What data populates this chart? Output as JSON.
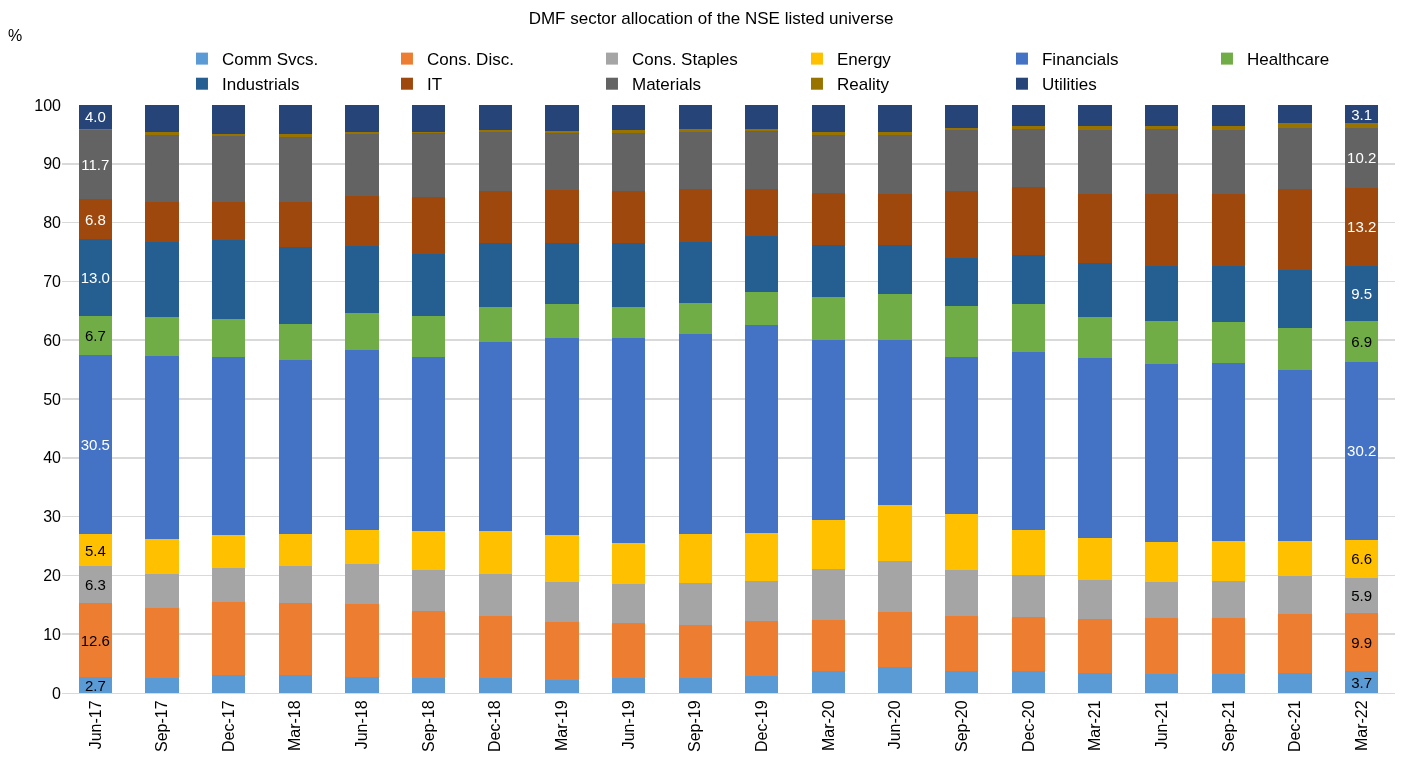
{
  "chart_data": {
    "type": "bar",
    "stacked": true,
    "title": "DMF sector allocation of the NSE listed universe",
    "ylabel": "%",
    "categories": [
      "Jun-17",
      "Sep-17",
      "Dec-17",
      "Mar-18",
      "Jun-18",
      "Sep-18",
      "Dec-18",
      "Mar-19",
      "Jun-19",
      "Sep-19",
      "Dec-19",
      "Mar-20",
      "Jun-20",
      "Sep-20",
      "Dec-20",
      "Mar-21",
      "Jun-21",
      "Sep-21",
      "Dec-21",
      "Mar-22"
    ],
    "ylim": [
      0,
      100
    ],
    "yticks": [
      0,
      10,
      20,
      30,
      40,
      50,
      60,
      70,
      80,
      90,
      100
    ],
    "grid": "y",
    "legend": "top",
    "series": [
      {
        "name": "Comm Svcs.",
        "color": "#5b9bd5",
        "values": [
          2.7,
          2.5,
          3.0,
          3.0,
          2.8,
          2.5,
          2.5,
          2.2,
          2.5,
          2.5,
          2.9,
          3.7,
          4.5,
          3.7,
          3.7,
          3.4,
          3.3,
          3.3,
          3.4,
          3.7
        ],
        "value_labels": [
          "2.7",
          null,
          null,
          null,
          null,
          null,
          null,
          null,
          null,
          null,
          null,
          null,
          null,
          null,
          null,
          null,
          null,
          null,
          null,
          "3.7"
        ]
      },
      {
        "name": "Cons. Disc.",
        "color": "#ed7d31",
        "values": [
          12.6,
          12.0,
          12.4,
          12.3,
          12.4,
          11.5,
          10.6,
          9.9,
          9.4,
          9.0,
          9.4,
          8.7,
          9.2,
          9.4,
          9.3,
          9.2,
          9.5,
          9.5,
          10.1,
          9.9
        ],
        "value_labels": [
          "12.6",
          null,
          null,
          null,
          null,
          null,
          null,
          null,
          null,
          null,
          null,
          null,
          null,
          null,
          null,
          null,
          null,
          null,
          null,
          "9.9"
        ]
      },
      {
        "name": "Cons. Staples",
        "color": "#a5a5a5",
        "values": [
          6.3,
          5.8,
          5.9,
          6.3,
          6.8,
          7.0,
          7.1,
          6.8,
          6.7,
          7.2,
          6.7,
          8.7,
          8.8,
          7.9,
          7.1,
          6.7,
          6.1,
          6.3,
          6.4,
          5.9
        ],
        "value_labels": [
          "6.3",
          null,
          null,
          null,
          null,
          null,
          null,
          null,
          null,
          null,
          null,
          null,
          null,
          null,
          null,
          null,
          null,
          null,
          null,
          "5.9"
        ]
      },
      {
        "name": "Energy",
        "color": "#ffc000",
        "values": [
          5.4,
          5.9,
          5.6,
          5.5,
          5.7,
          6.6,
          7.4,
          8.0,
          6.9,
          8.3,
          8.2,
          8.3,
          9.5,
          9.5,
          7.6,
          7.0,
          6.7,
          6.8,
          5.9,
          6.6
        ],
        "value_labels": [
          "5.4",
          null,
          null,
          null,
          null,
          null,
          null,
          null,
          null,
          null,
          null,
          null,
          null,
          null,
          null,
          null,
          null,
          null,
          null,
          "6.6"
        ]
      },
      {
        "name": "Financials",
        "color": "#4472c4",
        "values": [
          30.5,
          31.1,
          30.2,
          29.5,
          30.6,
          29.5,
          32.1,
          33.5,
          34.9,
          34.0,
          35.4,
          30.7,
          28.1,
          26.7,
          30.3,
          30.7,
          30.3,
          30.3,
          29.2,
          30.2
        ],
        "value_labels": [
          "30.5",
          null,
          null,
          null,
          null,
          null,
          null,
          null,
          null,
          null,
          null,
          null,
          null,
          null,
          null,
          null,
          null,
          null,
          null,
          "30.2"
        ]
      },
      {
        "name": "Healthcare",
        "color": "#70ad47",
        "values": [
          6.7,
          6.6,
          6.5,
          6.1,
          6.3,
          7.0,
          6.0,
          5.7,
          5.3,
          5.3,
          5.6,
          7.2,
          7.8,
          8.7,
          8.2,
          6.9,
          7.4,
          6.9,
          7.1,
          6.9
        ],
        "value_labels": [
          "6.7",
          null,
          null,
          null,
          null,
          null,
          null,
          null,
          null,
          null,
          null,
          null,
          null,
          null,
          null,
          null,
          null,
          null,
          null,
          "6.9"
        ]
      },
      {
        "name": "Industrials",
        "color": "#255e91",
        "values": [
          13.0,
          12.8,
          13.5,
          13.2,
          11.5,
          10.5,
          10.8,
          10.5,
          10.9,
          10.4,
          9.6,
          8.9,
          8.3,
          8.0,
          8.3,
          9.2,
          9.3,
          9.5,
          9.9,
          9.5
        ],
        "value_labels": [
          "13.0",
          null,
          null,
          null,
          null,
          null,
          null,
          null,
          null,
          null,
          null,
          null,
          null,
          null,
          null,
          null,
          null,
          null,
          null,
          "9.5"
        ]
      },
      {
        "name": "IT",
        "color": "#9e480e",
        "values": [
          6.8,
          6.8,
          6.4,
          7.6,
          8.5,
          9.7,
          8.8,
          8.9,
          8.7,
          9.0,
          8.0,
          8.9,
          8.6,
          11.4,
          11.5,
          11.8,
          12.2,
          12.2,
          13.7,
          13.2
        ],
        "value_labels": [
          "6.8",
          null,
          null,
          null,
          null,
          null,
          null,
          null,
          null,
          null,
          null,
          null,
          null,
          null,
          null,
          null,
          null,
          null,
          null,
          "13.2"
        ]
      },
      {
        "name": "Materials",
        "color": "#636363",
        "values": [
          11.7,
          11.4,
          11.2,
          11.0,
          10.5,
          10.9,
          10.1,
          9.7,
          9.9,
          9.7,
          9.7,
          9.8,
          10.1,
          10.5,
          9.9,
          10.9,
          11.1,
          10.9,
          10.4,
          10.2
        ],
        "value_labels": [
          "11.7",
          null,
          null,
          null,
          null,
          null,
          null,
          null,
          null,
          null,
          null,
          null,
          null,
          null,
          null,
          null,
          null,
          null,
          null,
          "10.2"
        ]
      },
      {
        "name": "Reality",
        "color": "#997300",
        "values": [
          0.3,
          0.5,
          0.4,
          0.5,
          0.3,
          0.2,
          0.3,
          0.4,
          0.6,
          0.5,
          0.5,
          0.5,
          0.5,
          0.3,
          0.6,
          0.7,
          0.6,
          0.8,
          0.8,
          0.8
        ]
      },
      {
        "name": "Utilities",
        "color": "#264478",
        "values": [
          4.0,
          4.6,
          4.9,
          5.0,
          4.6,
          4.6,
          4.3,
          4.4,
          4.2,
          4.1,
          4.0,
          4.6,
          4.6,
          3.9,
          3.5,
          3.5,
          3.5,
          3.5,
          3.1,
          3.1
        ],
        "value_labels": [
          "4.0",
          null,
          null,
          null,
          null,
          null,
          null,
          null,
          null,
          null,
          null,
          null,
          null,
          null,
          null,
          null,
          null,
          null,
          null,
          "3.1"
        ]
      }
    ]
  }
}
